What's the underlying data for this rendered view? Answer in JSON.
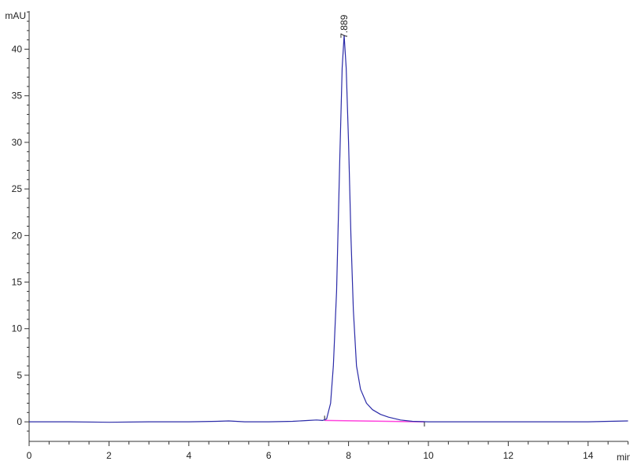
{
  "chart_data": {
    "type": "line",
    "title": "",
    "xlabel": "min",
    "ylabel": "mAU",
    "xlim": [
      0,
      15
    ],
    "ylim": [
      -2.1,
      44.1
    ],
    "grid": false,
    "x_ticks": [
      0,
      2,
      4,
      6,
      8,
      10,
      12,
      14
    ],
    "y_ticks": [
      0,
      5,
      10,
      15,
      20,
      25,
      30,
      35,
      40
    ],
    "colors": {
      "signal": "#2b2ba8",
      "baseline": "#ff44dd",
      "axis": "#333333"
    },
    "series": [
      {
        "x": [
          0,
          1,
          2,
          3,
          4,
          4.7,
          5.0,
          5.4,
          6.0,
          6.6,
          7.0,
          7.2,
          7.35,
          7.45,
          7.55,
          7.62,
          7.7,
          7.78,
          7.84,
          7.889,
          7.94,
          8.0,
          8.06,
          8.12,
          8.2,
          8.3,
          8.45,
          8.6,
          8.8,
          9.0,
          9.3,
          9.6,
          10,
          11,
          12,
          13,
          14,
          15
        ],
        "y": [
          0,
          0,
          -0.05,
          0,
          0,
          0.05,
          0.1,
          0,
          0,
          0.05,
          0.15,
          0.2,
          0.15,
          0.3,
          2,
          6,
          14,
          28,
          38,
          41.5,
          38,
          30,
          20,
          12,
          6,
          3.5,
          2,
          1.3,
          0.8,
          0.5,
          0.2,
          0.05,
          0,
          0,
          0,
          0,
          0,
          0.1
        ]
      }
    ],
    "integration_baseline": {
      "x": [
        7.4,
        9.9
      ],
      "y": [
        0.15,
        0
      ]
    },
    "peak_labels": [
      {
        "x": 7.889,
        "y": 41.5,
        "label": "7.889"
      }
    ]
  }
}
